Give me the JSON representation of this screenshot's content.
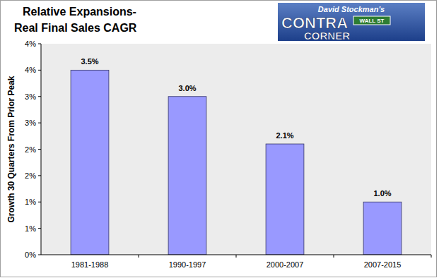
{
  "chart_data": {
    "type": "bar",
    "title": "Relative Expansions-\nReal Final Sales CAGR",
    "y_label": "Growth 30 Quarters From Prior Peak",
    "annotations": [
      "David Stockman's",
      "CONTRA",
      "WALL ST",
      "CORNER"
    ],
    "categories": [
      "1981-1988",
      "1990-1997",
      "2000-2007",
      "2007-2015"
    ],
    "values": [
      3.5,
      3.0,
      2.1,
      1.0
    ],
    "value_labels": [
      "3.5%",
      "3.0%",
      "2.1%",
      "1.0%"
    ],
    "color": "#9999ff",
    "ylim": [
      0,
      4
    ],
    "yticks": [
      {
        "value": 0,
        "label": "0%"
      },
      {
        "value": 0.5,
        "label": "1%"
      },
      {
        "value": 1,
        "label": "1%"
      },
      {
        "value": 1.5,
        "label": "2%"
      },
      {
        "value": 2,
        "label": "2%"
      },
      {
        "value": 2.5,
        "label": "3%"
      },
      {
        "value": 3,
        "label": "3%"
      },
      {
        "value": 3.5,
        "label": "4%"
      },
      {
        "value": 4,
        "label": "4%"
      }
    ],
    "grid": false,
    "data_labels": true
  }
}
